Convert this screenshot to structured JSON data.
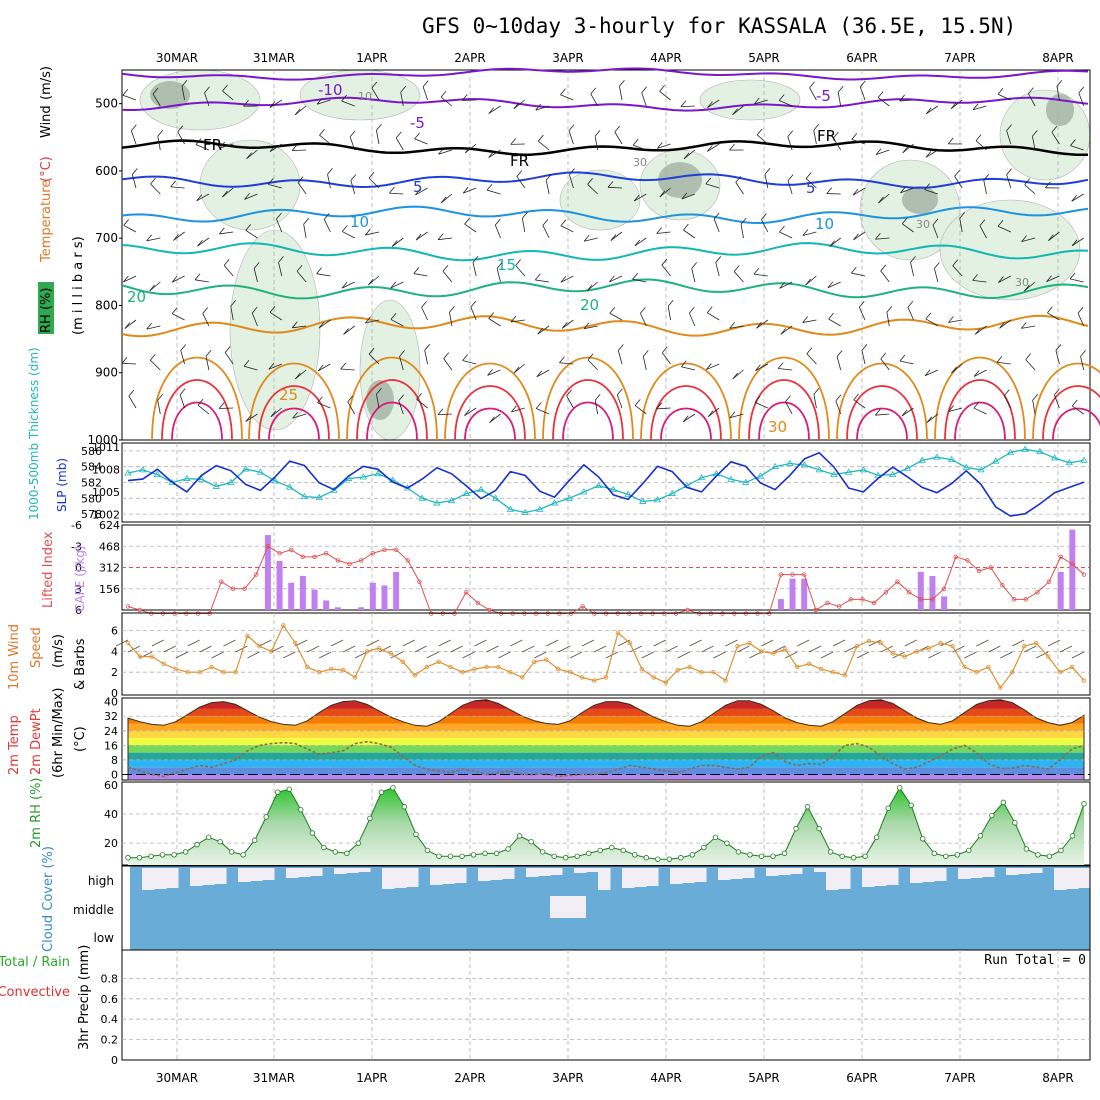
{
  "title": "GFS 0~10day 3-hourly for KASSALA (36.5E, 15.5N)",
  "colors": {
    "temp_cold": "#7a17c9",
    "temp_freeze": "#000000",
    "temp_5": "#1f3fd6",
    "temp_10": "#1c93e0",
    "temp_15": "#12b7b2",
    "temp_20": "#1db37a",
    "temp_25": "#e08a1a",
    "temp_30": "#e8333a",
    "temp_35": "#d81b78",
    "rh_fill": "#dff0df",
    "rh_dark": "#9aa89a",
    "thickness": "#20b7c0",
    "slp": "#1530d0",
    "lifted": "#e05050",
    "cape": "#c080f0",
    "wind": "#e09030",
    "dewpt": "#8a6a50",
    "rh2m": "#3aa03a",
    "cloud": "#6aacd8",
    "grid": "#b0b0b0"
  },
  "chart_data": [
    {
      "type": "contour",
      "panel": "upper_air",
      "title": "",
      "xlabel": "",
      "ylabel": "RH (%) Temperature (°C) Wind (m/s) (millibars)",
      "y_axis_label_parts": [
        "RH (%)",
        "Temperature",
        "(°C)",
        "Wind",
        "(m/s)",
        "(m i l l i b a r s)"
      ],
      "dates": [
        "30MAR",
        "31MAR",
        "1APR",
        "2APR",
        "3APR",
        "4APR",
        "5APR",
        "6APR",
        "7APR",
        "8APR"
      ],
      "ylim": [
        1000,
        450
      ],
      "yticks": [
        500,
        600,
        700,
        800,
        900,
        1000
      ],
      "contour_labels": [
        "-10",
        "-5",
        "-5",
        "FR",
        "FR",
        "FR",
        "5",
        "5",
        "10",
        "10",
        "15",
        "20",
        "20",
        "25",
        "30",
        "10",
        "30",
        "30",
        "30"
      ],
      "isotherms_mb": [
        {
          "temp": "-10",
          "approx_level_mb": 460
        },
        {
          "temp": "-5",
          "approx_level_mb": 505
        },
        {
          "temp": "FR",
          "approx_level_mb": 570
        },
        {
          "temp": "5",
          "approx_level_mb": 618
        },
        {
          "temp": "10",
          "approx_level_mb": 670
        },
        {
          "temp": "15",
          "approx_level_mb": 725
        },
        {
          "temp": "20",
          "approx_level_mb": 780
        },
        {
          "temp": "25",
          "approx_level_mb": 835
        }
      ]
    },
    {
      "type": "line",
      "panel": "thickness_slp",
      "ylabel_left": "1000-500mb Thickness (dm)",
      "ylabel_right": "SLP (mb)",
      "yticks_left": [
        "586",
        "584",
        "582",
        "580",
        "578"
      ],
      "yticks_right": [
        "1011",
        "1008",
        "1005",
        "1002"
      ],
      "ylim_thickness": [
        577,
        587
      ],
      "ylim_slp": [
        1001,
        1011.5
      ],
      "series": [
        {
          "name": "1000-500mb Thickness (dm)",
          "values": [
            583.2,
            583.6,
            583.0,
            582.0,
            582.5,
            582.4,
            581.5,
            582.0,
            583.7,
            583.3,
            582.2,
            581.4,
            580.2,
            580.1,
            581.0,
            582.5,
            582.7,
            583.1,
            582.3,
            581.3,
            580.0,
            579.4,
            579.7,
            580.6,
            581.1,
            580.0,
            578.6,
            578.2,
            578.6,
            579.4,
            580.0,
            580.8,
            581.6,
            581.1,
            580.5,
            579.6,
            579.8,
            580.6,
            581.6,
            582.6,
            583.1,
            582.4,
            582.0,
            582.8,
            584.0,
            584.4,
            584.2,
            583.6,
            583.0,
            583.3,
            583.6,
            582.9,
            583.0,
            583.8,
            584.8,
            585.2,
            584.9,
            583.9,
            583.6,
            584.7,
            585.8,
            586.2,
            585.9,
            585.1,
            584.5,
            584.8
          ]
        },
        {
          "name": "SLP (mb)",
          "values": [
            1006.5,
            1006.7,
            1008.0,
            1006.3,
            1005.0,
            1007.2,
            1008.5,
            1007.8,
            1006.0,
            1005.2,
            1007.0,
            1009.1,
            1008.5,
            1006.2,
            1005.3,
            1007.1,
            1008.4,
            1008.0,
            1006.3,
            1005.5,
            1006.7,
            1008.2,
            1007.4,
            1005.8,
            1004.1,
            1005.2,
            1007.7,
            1007.2,
            1005.1,
            1004.3,
            1006.5,
            1008.6,
            1007.0,
            1004.6,
            1004.0,
            1006.1,
            1008.4,
            1007.7,
            1005.6,
            1005.0,
            1007.1,
            1009.0,
            1008.4,
            1006.2,
            1005.3,
            1007.2,
            1009.4,
            1010.2,
            1008.3,
            1005.5,
            1005.0,
            1006.8,
            1008.3,
            1007.0,
            1005.6,
            1004.9,
            1006.1,
            1007.8,
            1006.0,
            1003.0,
            1001.8,
            1002.1,
            1003.4,
            1004.9,
            1005.6,
            1006.3
          ]
        }
      ]
    },
    {
      "type": "bar_line",
      "panel": "lifted_cape",
      "ylabel_left": "Lifted Index",
      "ylabel_right": "CAPE (J/kg)",
      "yticks_left": [
        "-6",
        "-3",
        "0",
        "3",
        "6"
      ],
      "yticks_right": [
        "624",
        "468",
        "312",
        "156"
      ],
      "ylim_lifted": [
        6,
        -6
      ],
      "ylim_cape": [
        0,
        624
      ],
      "series": [
        {
          "name": "Lifted Index",
          "values": [
            5.5,
            6.0,
            7.5,
            8.5,
            8.0,
            9.0,
            8.5,
            6.5,
            2.0,
            3.0,
            3.0,
            1.0,
            -3.0,
            -2.0,
            -2.5,
            -1.5,
            -1.5,
            -2.0,
            -1.0,
            -0.5,
            -1.0,
            -2.0,
            -2.5,
            -2.5,
            -1.0,
            2.0,
            7.0,
            8.0,
            6.5,
            3.5,
            5.0,
            6.0,
            7.0,
            8.0,
            7.5,
            8.0,
            8.0,
            7.5,
            6.5,
            5.5,
            7.5,
            8.5,
            8.0,
            7.5,
            9.0,
            9.5,
            8.5,
            8.0,
            6.0,
            6.5,
            7.0,
            9.0,
            9.0,
            8.0,
            7.5,
            8.5,
            1.0,
            1.0,
            1.0,
            6.0,
            5.0,
            5.5,
            4.5,
            4.5,
            5.0,
            3.5,
            2.0,
            3.5,
            4.5,
            4.5,
            3.0,
            -1.5,
            -1.0,
            0.5,
            0.0,
            2.5,
            4.5,
            4.5,
            3.5,
            2.0,
            -1.5,
            -0.5,
            1.0
          ]
        },
        {
          "name": "CAPE (J/kg)",
          "values": [
            0,
            0,
            0,
            0,
            0,
            0,
            0,
            0,
            0,
            0,
            0,
            0,
            550,
            360,
            200,
            250,
            150,
            70,
            20,
            0,
            20,
            200,
            180,
            280,
            0,
            0,
            0,
            0,
            0,
            0,
            0,
            0,
            0,
            0,
            0,
            0,
            0,
            0,
            0,
            0,
            0,
            0,
            0,
            0,
            0,
            0,
            0,
            0,
            0,
            0,
            0,
            0,
            0,
            0,
            0,
            0,
            80,
            230,
            230,
            0,
            0,
            0,
            0,
            0,
            0,
            0,
            0,
            0,
            280,
            250,
            100,
            0,
            0,
            0,
            0,
            0,
            0,
            0,
            0,
            0,
            280,
            590,
            0
          ]
        }
      ]
    },
    {
      "type": "line",
      "panel": "wind10m",
      "ylabel": "10m Wind Speed (m/s) & Barbs",
      "ylabel_parts": [
        "10m Wind",
        "Speed",
        "(m/s)",
        "& Barbs"
      ],
      "yticks": [
        "0",
        "2",
        "4",
        "6"
      ],
      "ylim": [
        0,
        7.5
      ],
      "series": [
        {
          "name": "10m Wind Speed (m/s)",
          "values": [
            4.8,
            3.5,
            3.5,
            2.8,
            2.3,
            2.0,
            2.0,
            2.5,
            2.0,
            2.0,
            5.5,
            4.5,
            4.0,
            6.5,
            4.8,
            2.5,
            2.0,
            2.3,
            2.2,
            1.5,
            4.0,
            4.3,
            3.8,
            3.0,
            1.7,
            2.5,
            3.0,
            2.5,
            2.0,
            2.3,
            2.5,
            2.5,
            2.0,
            1.5,
            3.0,
            3.2,
            2.3,
            2.0,
            1.5,
            1.2,
            1.5,
            5.8,
            4.8,
            2.3,
            1.5,
            1.0,
            2.2,
            2.5,
            2.0,
            2.0,
            1.2,
            4.5,
            4.8,
            4.0,
            3.8,
            4.2,
            2.5,
            2.8,
            2.3,
            2.0,
            1.7,
            4.5,
            5.0,
            4.8,
            3.8,
            3.5,
            4.0,
            4.3,
            4.8,
            4.5,
            2.5,
            2.0,
            2.5,
            0.5,
            2.0,
            4.5,
            4.8,
            3.5,
            2.0,
            2.5,
            1.2
          ]
        }
      ]
    },
    {
      "type": "area",
      "panel": "temp2m",
      "ylabel": "2m Temp 2m DewPt (6hr Min/Max) (°C)",
      "ylabel_parts": [
        "2m Temp",
        "2m DewPt",
        "(6hr Min/Max)",
        "(°C)"
      ],
      "yticks": [
        "0",
        "8",
        "16",
        "24",
        "32",
        "40"
      ],
      "ylim": [
        -3,
        42
      ],
      "series": [
        {
          "name": "2m Temp (°C)",
          "values": [
            31.0,
            29.0,
            27.5,
            27.0,
            29.0,
            33.0,
            37.0,
            39.5,
            40.0,
            38.5,
            35.0,
            31.5,
            29.0,
            27.5,
            27.0,
            29.5,
            34.0,
            38.0,
            40.0,
            40.5,
            38.5,
            35.0,
            31.5,
            29.0,
            27.0,
            26.5,
            29.0,
            33.5,
            38.0,
            40.5,
            41.0,
            39.0,
            35.5,
            32.0,
            29.5,
            28.0,
            27.5,
            29.5,
            34.0,
            38.0,
            40.0,
            40.0,
            38.5,
            35.0,
            31.5,
            29.0,
            27.0,
            26.5,
            29.0,
            33.5,
            38.0,
            40.5,
            40.5,
            38.5,
            35.0,
            31.0,
            28.5,
            27.0,
            26.5,
            29.0,
            33.5,
            38.0,
            40.5,
            41.0,
            39.0,
            35.0,
            31.0,
            28.5,
            27.5,
            29.5,
            34.0,
            38.5,
            40.5,
            41.0,
            39.5,
            35.5,
            31.0,
            28.5,
            27.0,
            28.5,
            32.5
          ]
        },
        {
          "name": "2m DewPt (°C)",
          "values": [
            4.0,
            2.0,
            0.0,
            -1.0,
            1.0,
            3.0,
            5.0,
            4.0,
            6.0,
            8.0,
            13.0,
            16.0,
            17.0,
            17.5,
            17.0,
            14.0,
            11.0,
            12.0,
            13.0,
            17.0,
            18.0,
            17.0,
            15.0,
            10.0,
            5.0,
            3.0,
            2.0,
            1.0,
            3.0,
            2.0,
            0.0,
            1.0,
            2.0,
            0.0,
            0.0,
            0.5,
            -1.0,
            -0.5,
            0.0,
            0.0,
            1.0,
            3.0,
            5.0,
            4.0,
            3.0,
            2.0,
            1.0,
            3.0,
            5.0,
            5.0,
            4.0,
            3.0,
            4.0,
            10.0,
            12.0,
            7.0,
            5.0,
            6.0,
            5.5,
            10.0,
            16.0,
            17.0,
            15.0,
            10.0,
            6.0,
            3.0,
            4.0,
            7.0,
            10.0,
            14.0,
            16.0,
            12.0,
            6.0,
            3.5,
            3.5,
            5.0,
            4.0,
            3.0,
            8.0,
            14.0,
            16.0
          ]
        }
      ]
    },
    {
      "type": "area",
      "panel": "rh2m",
      "ylabel": "2m RH (%)",
      "yticks": [
        "20",
        "40",
        "60"
      ],
      "ylim": [
        5,
        62
      ],
      "series": [
        {
          "name": "2m RH (%)",
          "values": [
            10,
            10,
            11,
            12,
            12,
            14,
            19,
            24,
            21,
            14,
            12,
            22,
            38,
            55,
            57,
            43,
            27,
            17,
            14,
            13,
            20,
            37,
            55,
            58,
            45,
            26,
            15,
            11,
            11,
            11,
            12,
            13,
            13,
            16,
            25,
            21,
            14,
            11,
            10,
            11,
            13,
            15,
            17,
            15,
            12,
            10,
            9,
            9,
            10,
            12,
            17,
            24,
            20,
            14,
            12,
            11,
            11,
            13,
            30,
            45,
            30,
            14,
            11,
            10,
            11,
            24,
            44,
            58,
            46,
            23,
            13,
            11,
            12,
            15,
            25,
            39,
            48,
            34,
            16,
            12,
            11,
            15,
            25,
            47
          ]
        }
      ]
    },
    {
      "type": "heatmap",
      "panel": "cloud_cover",
      "ylabel": "Cloud Cover (%)",
      "row_labels": [
        "high",
        "middle",
        "low"
      ],
      "note": "low and middle near fully covered; high layer partial"
    },
    {
      "type": "line",
      "panel": "precip",
      "ylabel": "3hr Precip (mm)",
      "legend_left": [
        "Total / Rain",
        "Convective"
      ],
      "yticks": [
        "0",
        "0.2",
        "0.4",
        "0.6",
        "0.8"
      ],
      "ylim": [
        0,
        1
      ],
      "annotation": "Run Total = 0",
      "series": [
        {
          "name": "3hr Precip (mm)",
          "values": []
        }
      ]
    }
  ]
}
